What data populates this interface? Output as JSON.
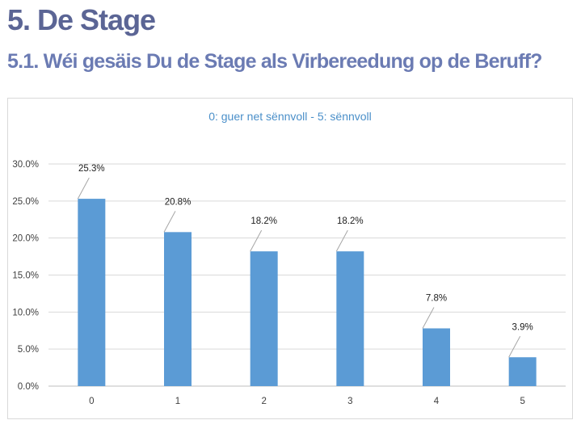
{
  "page": {
    "heading": "5. De Stage",
    "subheading": "5.1. Wéi gesäis Du de Stage als Virbereedung op de Beruff?"
  },
  "chart_data": {
    "type": "bar",
    "title": "0: guer net sënnvoll - 5: sënnvoll",
    "xlabel": "",
    "ylabel": "",
    "categories": [
      "0",
      "1",
      "2",
      "3",
      "4",
      "5"
    ],
    "values": [
      25.3,
      20.8,
      18.2,
      18.2,
      7.8,
      3.9
    ],
    "data_labels": [
      "25.3%",
      "20.8%",
      "18.2%",
      "18.2%",
      "7.8%",
      "3.9%"
    ],
    "y_ticks": [
      0,
      5,
      10,
      15,
      20,
      25,
      30
    ],
    "y_tick_labels": [
      "0.0%",
      "5.0%",
      "10.0%",
      "15.0%",
      "20.0%",
      "25.0%",
      "30.0%"
    ],
    "ylim": [
      0,
      30
    ],
    "grid": "horizontal",
    "legend": "none",
    "colors": {
      "bar": "#5b9bd5",
      "grid": "#d9d9d9",
      "leader": "#a6a6a6"
    }
  }
}
